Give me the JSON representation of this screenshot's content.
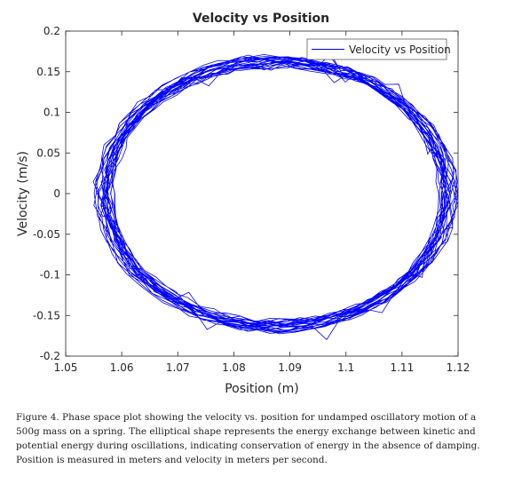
{
  "chart_data": {
    "type": "line",
    "title": "Velocity vs Position",
    "xlabel": "Position (m)",
    "ylabel": "Velocity (m/s)",
    "xlim": [
      1.05,
      1.12
    ],
    "ylim": [
      -0.2,
      0.2
    ],
    "xticks": [
      "1.05",
      "1.06",
      "1.07",
      "1.08",
      "1.09",
      "1.1",
      "1.11",
      "1.12"
    ],
    "yticks": [
      "0.2",
      "0.15",
      "0.1",
      "0.05",
      "0",
      "-0.05",
      "-0.1",
      "-0.15",
      "-0.2"
    ],
    "grid": false,
    "legend_position": "top-right",
    "line_color": "#0000ff",
    "series": [
      {
        "name": "Velocity vs Position",
        "center_x": 1.0875,
        "center_y": 0.0,
        "x_amplitude": 0.0305,
        "y_amplitude": 0.163,
        "cycles": 24,
        "points_per_cycle": 70
      }
    ]
  },
  "caption": "Figure 4. Phase space plot showing the velocity vs. position for undamped oscillatory motion of a 500g mass on a spring. The elliptical shape represents the energy exchange between kinetic and potential energy during oscillations, indicating conservation of energy in the absence of damping. Position is measured in meters and velocity in meters per second."
}
